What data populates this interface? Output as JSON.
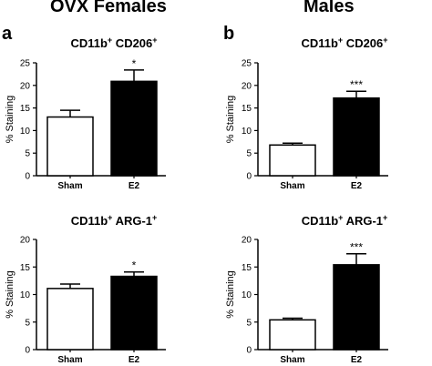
{
  "figure": {
    "col_titles": [
      "OVX Females",
      "Males"
    ],
    "panel_letters": [
      "a",
      "b"
    ]
  },
  "chart_data": [
    {
      "type": "bar",
      "title": "CD11b",
      "title_sup1": "+",
      "title_mid": " CD206",
      "title_sup2": "+",
      "ylabel": "% Staining",
      "categories": [
        "Sham",
        "E2"
      ],
      "values": [
        13.0,
        20.9
      ],
      "errors": [
        1.5,
        2.5
      ],
      "significance": [
        "",
        "*"
      ],
      "ylim": [
        0,
        25
      ],
      "yticks": [
        0,
        5,
        10,
        15,
        20,
        25
      ],
      "bar_colors": [
        "#ffffff",
        "#000000"
      ]
    },
    {
      "type": "bar",
      "title": "CD11b",
      "title_sup1": "+",
      "title_mid": " CD206",
      "title_sup2": "+",
      "ylabel": "% Staining",
      "categories": [
        "Sham",
        "E2"
      ],
      "values": [
        6.8,
        17.2
      ],
      "errors": [
        0.4,
        1.5
      ],
      "significance": [
        "",
        "***"
      ],
      "ylim": [
        0,
        25
      ],
      "yticks": [
        0,
        5,
        10,
        15,
        20,
        25
      ],
      "bar_colors": [
        "#ffffff",
        "#000000"
      ]
    },
    {
      "type": "bar",
      "title": "CD11b",
      "title_sup1": "+",
      "title_mid": " ARG-1",
      "title_sup2": "+",
      "ylabel": "% Staining",
      "categories": [
        "Sham",
        "E2"
      ],
      "values": [
        11.1,
        13.3
      ],
      "errors": [
        0.8,
        0.8
      ],
      "significance": [
        "",
        "*"
      ],
      "ylim": [
        0,
        20
      ],
      "yticks": [
        0,
        5,
        10,
        15,
        20
      ],
      "bar_colors": [
        "#ffffff",
        "#000000"
      ]
    },
    {
      "type": "bar",
      "title": "CD11b",
      "title_sup1": "+",
      "title_mid": " ARG-1",
      "title_sup2": "+",
      "ylabel": "% Staining",
      "categories": [
        "Sham",
        "E2"
      ],
      "values": [
        5.4,
        15.4
      ],
      "errors": [
        0.3,
        2.0
      ],
      "significance": [
        "",
        "***"
      ],
      "ylim": [
        0,
        20
      ],
      "yticks": [
        0,
        5,
        10,
        15,
        20
      ],
      "bar_colors": [
        "#ffffff",
        "#000000"
      ]
    }
  ]
}
